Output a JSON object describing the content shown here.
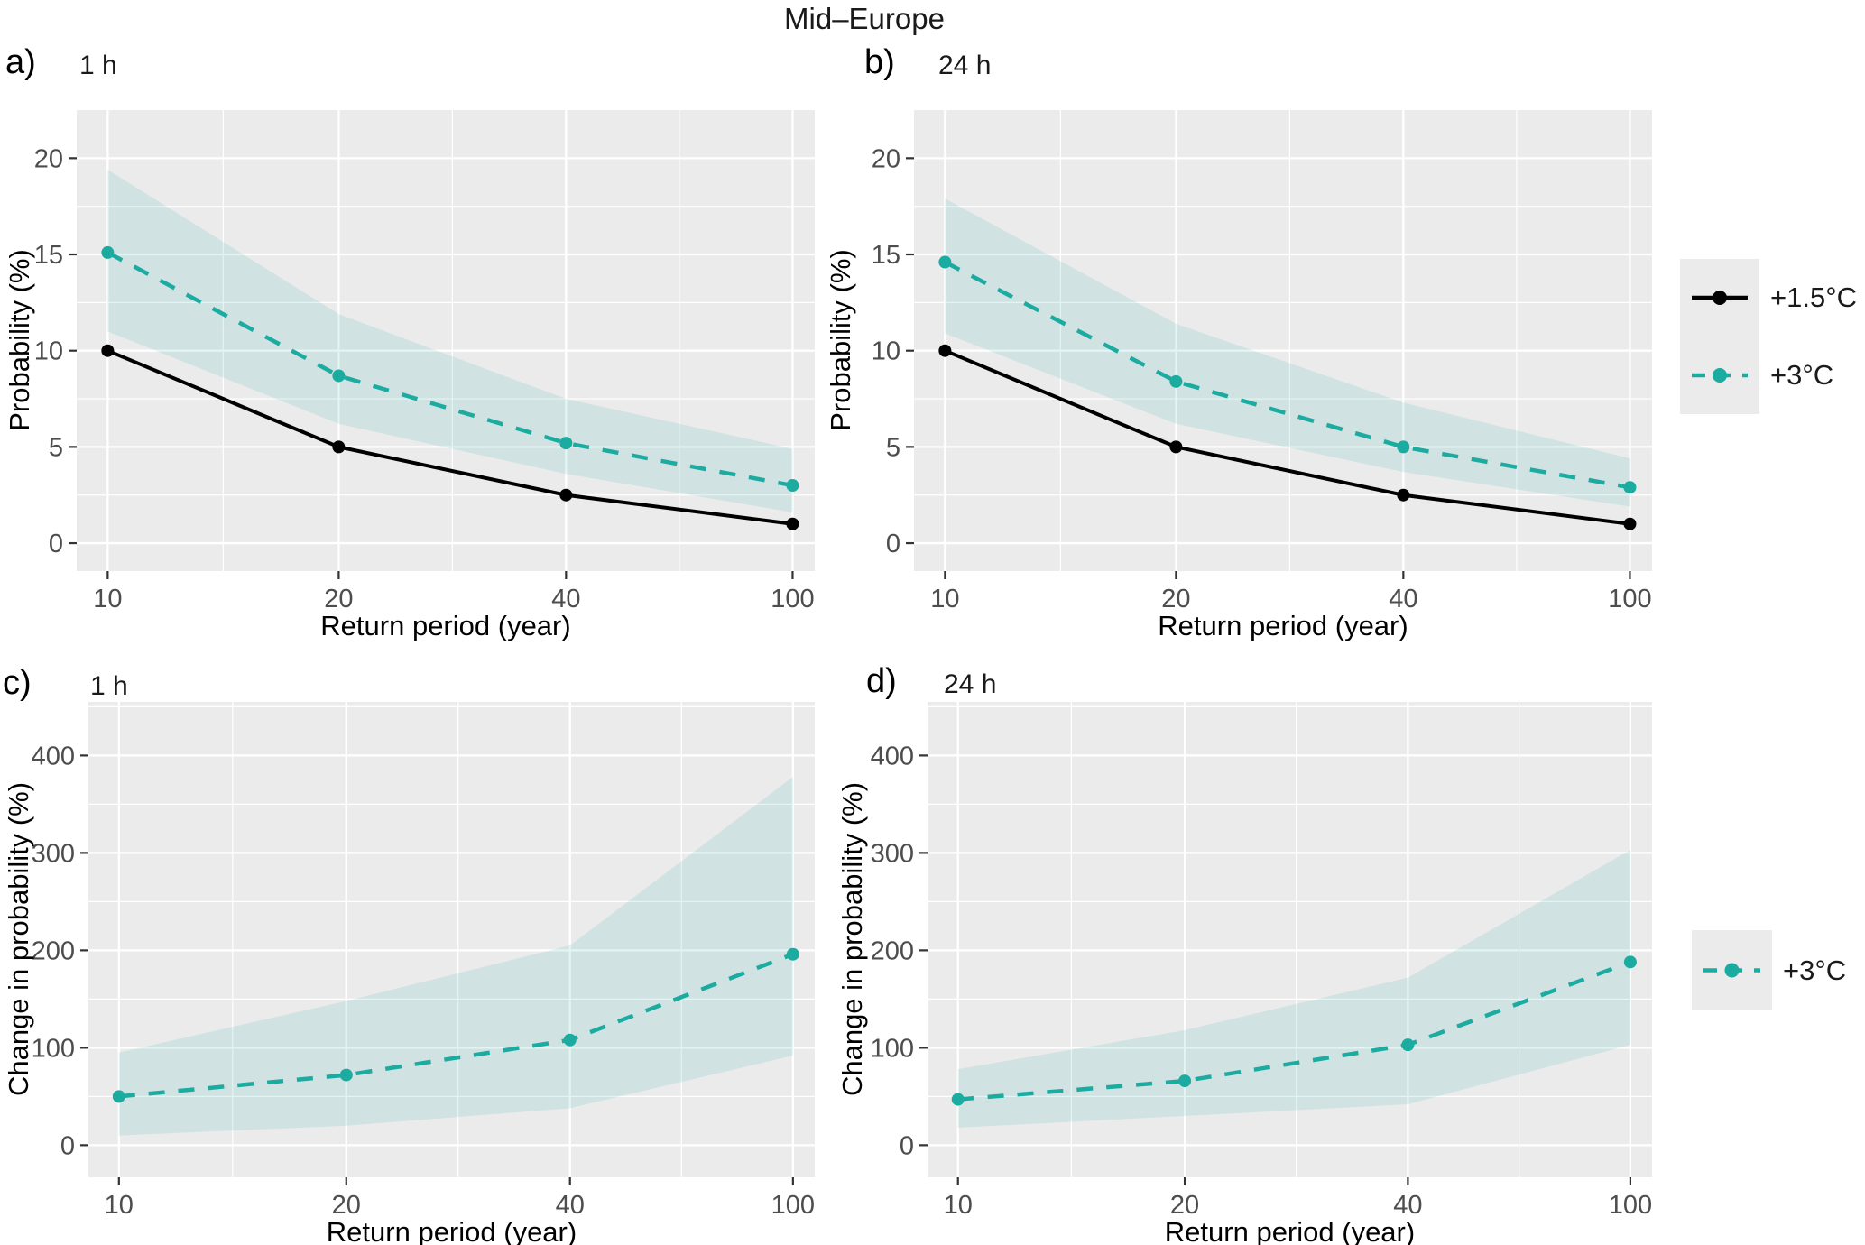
{
  "title": "Mid–Europe",
  "axis": {
    "x_label": "Return period (year)"
  },
  "style": {
    "teal": "#1CABA0",
    "black": "#000000",
    "panel_bg": "#EBEBEB",
    "grid": "#FFFFFF",
    "band_opacity": 0.13,
    "tick_mark": "#333333",
    "tick_text": "#4D4D4D",
    "legend_key_bg": "#EBEBEB"
  },
  "legend_top": {
    "items": [
      {
        "label": "+1.5°C",
        "color": "#000000",
        "dashed": false
      },
      {
        "label": "+3°C",
        "color": "#1CABA0",
        "dashed": true
      }
    ]
  },
  "legend_bottom": {
    "items": [
      {
        "label": "+3°C",
        "color": "#1CABA0",
        "dashed": true
      }
    ]
  },
  "chart_data": [
    {
      "id": "a",
      "tag": "a)",
      "title": "1 h",
      "type": "line",
      "xlabel": "Return period (year)",
      "ylabel": "Probability (%)",
      "x_values": [
        10,
        20,
        40,
        100
      ],
      "x_tick_labels": [
        "10",
        "20",
        "40",
        "100"
      ],
      "y_ticks": [
        0,
        5,
        10,
        15,
        20
      ],
      "y_tick_labels": [
        "0",
        "5",
        "10",
        "15",
        "20"
      ],
      "y_minor": [
        2.5,
        7.5,
        12.5,
        17.5,
        22.5
      ],
      "ylim": [
        0,
        20
      ],
      "series": [
        {
          "name": "+1.5°C",
          "color": "#000000",
          "dashed": false,
          "values": [
            10.0,
            5.0,
            2.5,
            1.0
          ]
        },
        {
          "name": "+3°C",
          "color": "#1CABA0",
          "dashed": true,
          "values": [
            15.1,
            8.7,
            5.2,
            3.0
          ]
        }
      ],
      "band": {
        "series": "+3°C",
        "lower": [
          11.0,
          6.2,
          3.6,
          1.6
        ],
        "upper": [
          19.4,
          11.9,
          7.5,
          4.9
        ]
      }
    },
    {
      "id": "b",
      "tag": "b)",
      "title": "24 h",
      "type": "line",
      "xlabel": "Return period (year)",
      "ylabel": "Probability (%)",
      "x_values": [
        10,
        20,
        40,
        100
      ],
      "x_tick_labels": [
        "10",
        "20",
        "40",
        "100"
      ],
      "y_ticks": [
        0,
        5,
        10,
        15,
        20
      ],
      "y_tick_labels": [
        "0",
        "5",
        "10",
        "15",
        "20"
      ],
      "y_minor": [
        2.5,
        7.5,
        12.5,
        17.5,
        22.5
      ],
      "ylim": [
        0,
        20
      ],
      "series": [
        {
          "name": "+1.5°C",
          "color": "#000000",
          "dashed": false,
          "values": [
            10.0,
            5.0,
            2.5,
            1.0
          ]
        },
        {
          "name": "+3°C",
          "color": "#1CABA0",
          "dashed": true,
          "values": [
            14.6,
            8.4,
            5.0,
            2.9
          ]
        }
      ],
      "band": {
        "series": "+3°C",
        "lower": [
          10.9,
          6.2,
          3.7,
          1.9
        ],
        "upper": [
          17.9,
          11.4,
          7.3,
          4.4
        ]
      }
    },
    {
      "id": "c",
      "tag": "c)",
      "title": "1 h",
      "type": "line",
      "xlabel": "Return period (year)",
      "ylabel": "Change in probability (%)",
      "x_values": [
        10,
        20,
        40,
        100
      ],
      "x_tick_labels": [
        "10",
        "20",
        "40",
        "100"
      ],
      "y_ticks": [
        0,
        100,
        200,
        300,
        400
      ],
      "y_tick_labels": [
        "0",
        "100",
        "200",
        "300",
        "400"
      ],
      "y_minor": [
        50,
        150,
        250,
        350,
        450
      ],
      "ylim": [
        0,
        400
      ],
      "series": [
        {
          "name": "+3°C",
          "color": "#1CABA0",
          "dashed": true,
          "values": [
            50,
            72,
            108,
            196
          ]
        }
      ],
      "band": {
        "series": "+3°C",
        "lower": [
          10,
          20,
          38,
          92
        ],
        "upper": [
          95,
          148,
          205,
          378
        ]
      }
    },
    {
      "id": "d",
      "tag": "d)",
      "title": "24 h",
      "type": "line",
      "xlabel": "Return period (year)",
      "ylabel": "Change in probability (%)",
      "x_values": [
        10,
        20,
        40,
        100
      ],
      "x_tick_labels": [
        "10",
        "20",
        "40",
        "100"
      ],
      "y_ticks": [
        0,
        100,
        200,
        300,
        400
      ],
      "y_tick_labels": [
        "0",
        "100",
        "200",
        "300",
        "400"
      ],
      "y_minor": [
        50,
        150,
        250,
        350,
        450
      ],
      "ylim": [
        0,
        400
      ],
      "series": [
        {
          "name": "+3°C",
          "color": "#1CABA0",
          "dashed": true,
          "values": [
            47,
            66,
            103,
            188
          ]
        }
      ],
      "band": {
        "series": "+3°C",
        "lower": [
          18,
          30,
          42,
          103
        ],
        "upper": [
          78,
          118,
          172,
          303
        ]
      }
    }
  ]
}
